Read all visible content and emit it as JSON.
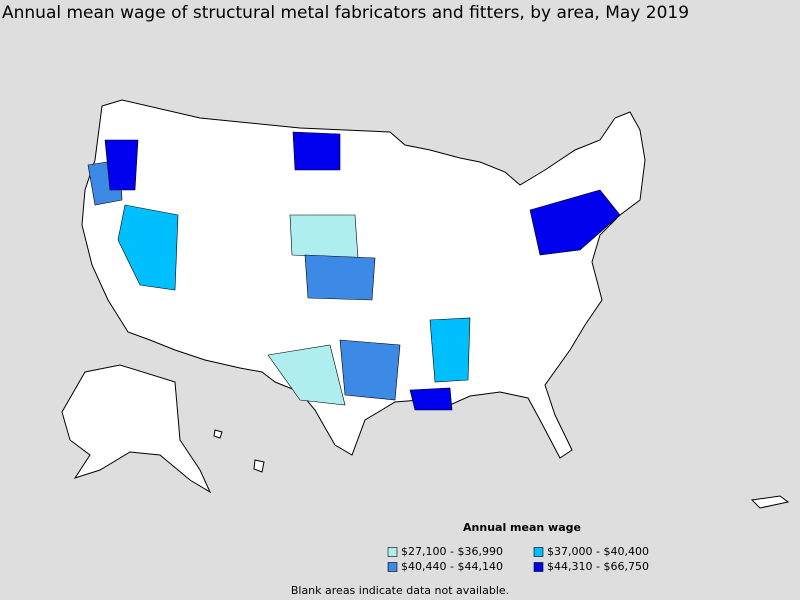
{
  "title": "Annual mean wage of structural metal fabricators and fitters, by area, May 2019",
  "legend": {
    "title": "Annual mean wage",
    "items": [
      {
        "label": "$27,100 - $36,990",
        "color": "#aeeeee"
      },
      {
        "label": "$37,000 - $40,400",
        "color": "#00bfff"
      },
      {
        "label": "$40,440 - $44,140",
        "color": "#3d8ae6"
      },
      {
        "label": "$44,310 - $66,750",
        "color": "#0000ee"
      }
    ]
  },
  "note": "Blank areas indicate data not available."
}
